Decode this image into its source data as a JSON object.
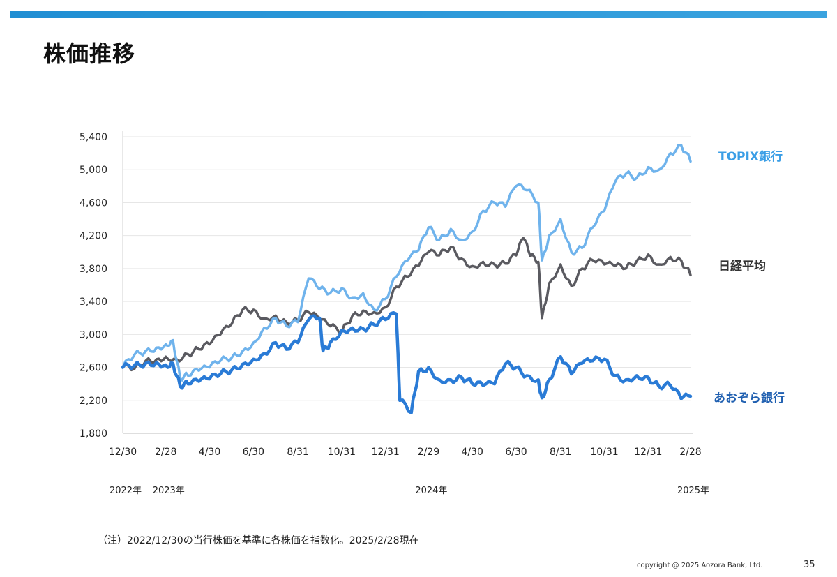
{
  "page": {
    "title": "株価推移",
    "note": "（注）2022/12/30の当行株価を基準に各株価を指数化。2025/2/28現在",
    "copyright": "copyright @ 2025 Aozora Bank, Ltd.",
    "page_number": "35"
  },
  "chart_data": {
    "type": "line",
    "title": "",
    "xlabel": "",
    "ylabel": "",
    "ylim": [
      1800,
      5400
    ],
    "y_ticks": [
      "5,400",
      "5,000",
      "4,600",
      "4,200",
      "3,800",
      "3,400",
      "3,000",
      "2,600",
      "2,200",
      "1,800"
    ],
    "y_tick_values": [
      5400,
      5000,
      4600,
      4200,
      3800,
      3400,
      3000,
      2600,
      2200,
      1800
    ],
    "x_ticks": [
      "12/30",
      "2/28",
      "4/30",
      "6/30",
      "8/31",
      "10/31",
      "12/31",
      "2/29",
      "4/30",
      "6/30",
      "8/31",
      "10/31",
      "12/31",
      "2/28"
    ],
    "x_tick_dates": [
      "2022-12-30",
      "2023-02-28",
      "2023-04-30",
      "2023-06-30",
      "2023-08-31",
      "2023-10-31",
      "2023-12-31",
      "2024-02-29",
      "2024-04-30",
      "2024-06-30",
      "2024-08-31",
      "2024-10-31",
      "2024-12-31",
      "2025-02-28"
    ],
    "year_labels": [
      {
        "text": "2022年",
        "date": "2022-12-30"
      },
      {
        "text": "2023年",
        "date": "2023-02-28"
      },
      {
        "text": "2024年",
        "date": "2024-02-29"
      },
      {
        "text": "2025年",
        "date": "2025-02-28"
      }
    ],
    "grid": true,
    "series": [
      {
        "name": "日経平均",
        "color": "#5a5a60",
        "points": [
          [
            "2022-12-30",
            2600
          ],
          [
            "2023-01-15",
            2580
          ],
          [
            "2023-01-31",
            2680
          ],
          [
            "2023-02-15",
            2700
          ],
          [
            "2023-02-28",
            2730
          ],
          [
            "2023-03-15",
            2700
          ],
          [
            "2023-03-31",
            2760
          ],
          [
            "2023-04-15",
            2820
          ],
          [
            "2023-04-30",
            2880
          ],
          [
            "2023-05-15",
            3000
          ],
          [
            "2023-05-31",
            3130
          ],
          [
            "2023-06-15",
            3300
          ],
          [
            "2023-06-30",
            3300
          ],
          [
            "2023-07-15",
            3200
          ],
          [
            "2023-07-31",
            3230
          ],
          [
            "2023-08-15",
            3150
          ],
          [
            "2023-08-31",
            3170
          ],
          [
            "2023-09-15",
            3270
          ],
          [
            "2023-09-30",
            3180
          ],
          [
            "2023-10-15",
            3100
          ],
          [
            "2023-10-31",
            3030
          ],
          [
            "2023-11-15",
            3230
          ],
          [
            "2023-11-30",
            3290
          ],
          [
            "2023-12-15",
            3270
          ],
          [
            "2023-12-31",
            3330
          ],
          [
            "2024-01-15",
            3580
          ],
          [
            "2024-01-31",
            3700
          ],
          [
            "2024-02-15",
            3830
          ],
          [
            "2024-02-29",
            4000
          ],
          [
            "2024-03-15",
            3960
          ],
          [
            "2024-03-31",
            4060
          ],
          [
            "2024-04-15",
            3920
          ],
          [
            "2024-04-30",
            3830
          ],
          [
            "2024-05-15",
            3880
          ],
          [
            "2024-05-31",
            3850
          ],
          [
            "2024-06-15",
            3860
          ],
          [
            "2024-06-30",
            3960
          ],
          [
            "2024-07-10",
            4170
          ],
          [
            "2024-07-20",
            3950
          ],
          [
            "2024-07-31",
            3880
          ],
          [
            "2024-08-05",
            3200
          ],
          [
            "2024-08-15",
            3620
          ],
          [
            "2024-08-31",
            3850
          ],
          [
            "2024-09-15",
            3590
          ],
          [
            "2024-09-30",
            3800
          ],
          [
            "2024-10-15",
            3900
          ],
          [
            "2024-10-31",
            3850
          ],
          [
            "2024-11-15",
            3830
          ],
          [
            "2024-11-30",
            3800
          ],
          [
            "2024-12-15",
            3890
          ],
          [
            "2024-12-31",
            3970
          ],
          [
            "2025-01-15",
            3850
          ],
          [
            "2025-01-31",
            3940
          ],
          [
            "2025-02-15",
            3900
          ],
          [
            "2025-02-28",
            3720
          ]
        ]
      },
      {
        "name": "TOPIX銀行",
        "color": "#6fb3ec",
        "points": [
          [
            "2022-12-30",
            2600
          ],
          [
            "2023-01-15",
            2750
          ],
          [
            "2023-01-31",
            2800
          ],
          [
            "2023-02-15",
            2840
          ],
          [
            "2023-02-28",
            2880
          ],
          [
            "2023-03-10",
            2930
          ],
          [
            "2023-03-20",
            2470
          ],
          [
            "2023-03-31",
            2500
          ],
          [
            "2023-04-15",
            2560
          ],
          [
            "2023-04-30",
            2600
          ],
          [
            "2023-05-15",
            2680
          ],
          [
            "2023-05-31",
            2720
          ],
          [
            "2023-06-15",
            2800
          ],
          [
            "2023-06-30",
            2900
          ],
          [
            "2023-07-15",
            3080
          ],
          [
            "2023-07-31",
            3200
          ],
          [
            "2023-08-15",
            3100
          ],
          [
            "2023-08-31",
            3150
          ],
          [
            "2023-09-15",
            3680
          ],
          [
            "2023-09-30",
            3550
          ],
          [
            "2023-10-15",
            3500
          ],
          [
            "2023-10-31",
            3560
          ],
          [
            "2023-11-15",
            3450
          ],
          [
            "2023-11-30",
            3500
          ],
          [
            "2023-12-15",
            3300
          ],
          [
            "2023-12-31",
            3430
          ],
          [
            "2024-01-15",
            3700
          ],
          [
            "2024-01-31",
            3900
          ],
          [
            "2024-02-15",
            4020
          ],
          [
            "2024-02-29",
            4300
          ],
          [
            "2024-03-15",
            4150
          ],
          [
            "2024-03-31",
            4280
          ],
          [
            "2024-04-15",
            4150
          ],
          [
            "2024-04-30",
            4250
          ],
          [
            "2024-05-15",
            4500
          ],
          [
            "2024-05-31",
            4600
          ],
          [
            "2024-06-15",
            4550
          ],
          [
            "2024-06-30",
            4800
          ],
          [
            "2024-07-15",
            4750
          ],
          [
            "2024-07-31",
            4600
          ],
          [
            "2024-08-05",
            3900
          ],
          [
            "2024-08-15",
            4200
          ],
          [
            "2024-08-31",
            4400
          ],
          [
            "2024-09-15",
            4000
          ],
          [
            "2024-09-30",
            4050
          ],
          [
            "2024-10-15",
            4300
          ],
          [
            "2024-10-31",
            4500
          ],
          [
            "2024-11-15",
            4850
          ],
          [
            "2024-11-30",
            4950
          ],
          [
            "2024-12-15",
            4900
          ],
          [
            "2024-12-31",
            5030
          ],
          [
            "2025-01-15",
            5000
          ],
          [
            "2025-01-31",
            5200
          ],
          [
            "2025-02-15",
            5300
          ],
          [
            "2025-02-28",
            5100
          ]
        ]
      },
      {
        "name": "あおぞら銀行",
        "color": "#2a7bd6",
        "points": [
          [
            "2022-12-30",
            2600
          ],
          [
            "2023-01-15",
            2620
          ],
          [
            "2023-01-31",
            2650
          ],
          [
            "2023-02-15",
            2660
          ],
          [
            "2023-02-28",
            2630
          ],
          [
            "2023-03-10",
            2650
          ],
          [
            "2023-03-20",
            2370
          ],
          [
            "2023-03-31",
            2400
          ],
          [
            "2023-04-15",
            2430
          ],
          [
            "2023-04-30",
            2460
          ],
          [
            "2023-05-15",
            2520
          ],
          [
            "2023-05-31",
            2570
          ],
          [
            "2023-06-15",
            2640
          ],
          [
            "2023-06-30",
            2700
          ],
          [
            "2023-07-15",
            2770
          ],
          [
            "2023-07-31",
            2900
          ],
          [
            "2023-08-15",
            2820
          ],
          [
            "2023-08-31",
            2900
          ],
          [
            "2023-09-15",
            3180
          ],
          [
            "2023-09-30",
            3200
          ],
          [
            "2023-10-05",
            2800
          ],
          [
            "2023-10-15",
            2900
          ],
          [
            "2023-10-31",
            3050
          ],
          [
            "2023-11-15",
            3080
          ],
          [
            "2023-11-30",
            3070
          ],
          [
            "2023-12-15",
            3120
          ],
          [
            "2023-12-31",
            3180
          ],
          [
            "2024-01-15",
            3250
          ],
          [
            "2024-01-20",
            2200
          ],
          [
            "2024-02-05",
            2050
          ],
          [
            "2024-02-15",
            2550
          ],
          [
            "2024-02-29",
            2600
          ],
          [
            "2024-03-15",
            2450
          ],
          [
            "2024-03-31",
            2450
          ],
          [
            "2024-04-15",
            2480
          ],
          [
            "2024-04-30",
            2400
          ],
          [
            "2024-05-15",
            2380
          ],
          [
            "2024-05-31",
            2400
          ],
          [
            "2024-06-15",
            2640
          ],
          [
            "2024-06-30",
            2600
          ],
          [
            "2024-07-15",
            2500
          ],
          [
            "2024-07-31",
            2450
          ],
          [
            "2024-08-05",
            2230
          ],
          [
            "2024-08-15",
            2450
          ],
          [
            "2024-08-31",
            2730
          ],
          [
            "2024-09-15",
            2520
          ],
          [
            "2024-09-30",
            2650
          ],
          [
            "2024-10-15",
            2680
          ],
          [
            "2024-10-31",
            2700
          ],
          [
            "2024-11-15",
            2500
          ],
          [
            "2024-11-30",
            2450
          ],
          [
            "2024-12-15",
            2500
          ],
          [
            "2024-12-31",
            2480
          ],
          [
            "2025-01-15",
            2370
          ],
          [
            "2025-01-31",
            2380
          ],
          [
            "2025-02-15",
            2220
          ],
          [
            "2025-02-28",
            2250
          ]
        ]
      }
    ]
  }
}
